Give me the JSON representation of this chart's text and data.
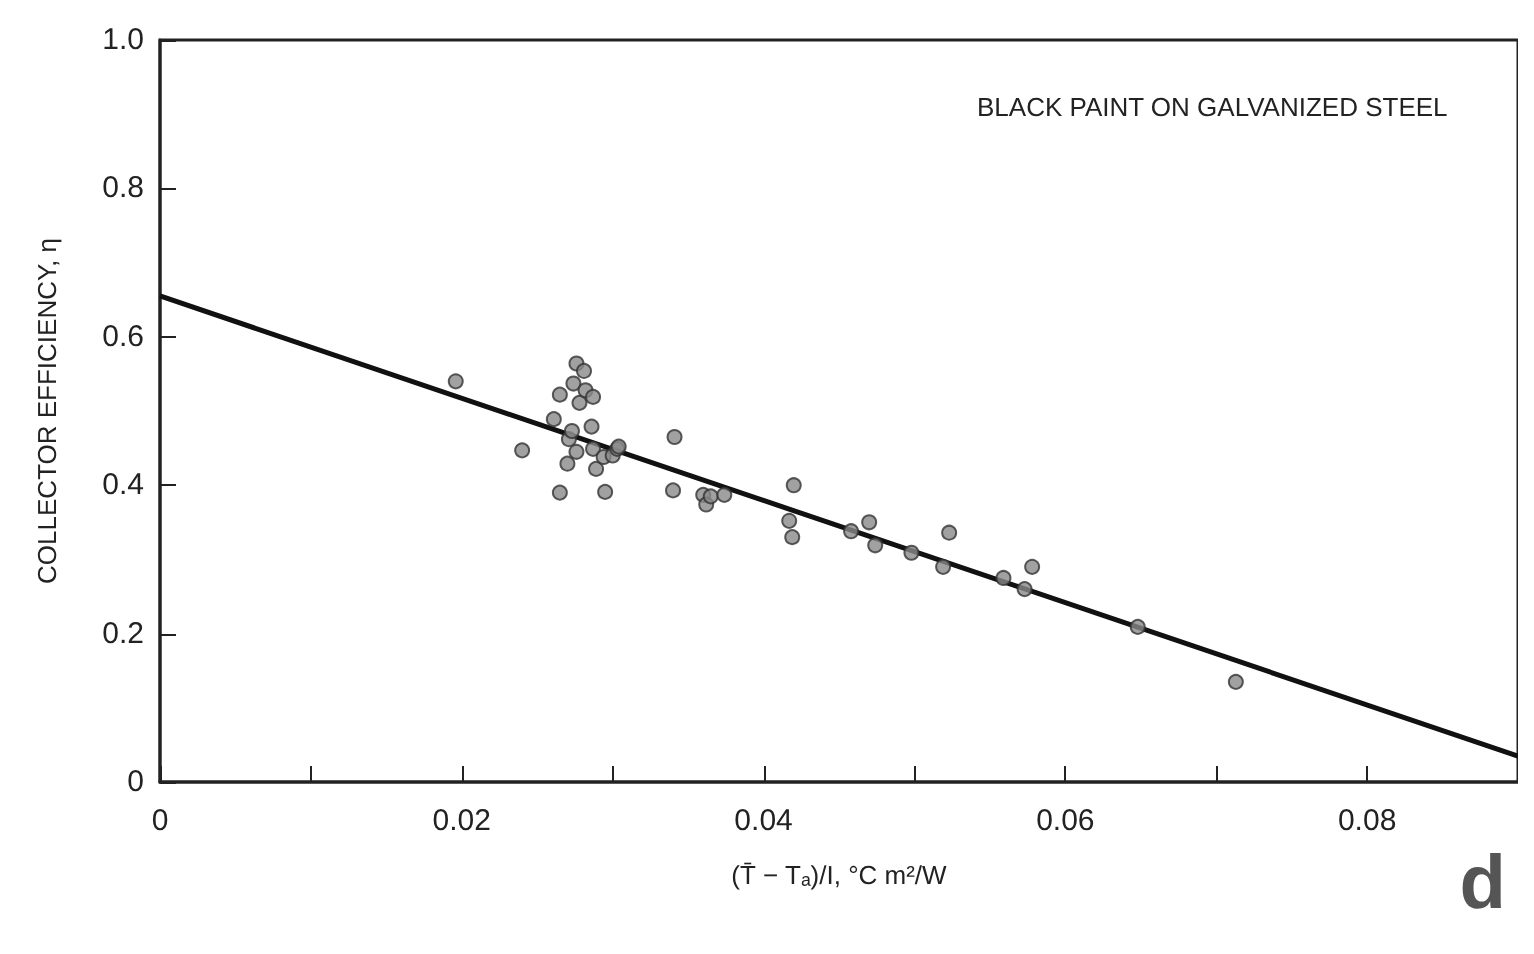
{
  "chart_data": {
    "type": "scatter",
    "title": "BLACK PAINT ON GALVANIZED STEEL",
    "xlabel": "(T̄ − Tₐ)/I, °C m²/W",
    "ylabel": "COLLECTOR EFFICIENCY, η",
    "annotations": [
      "d"
    ],
    "xlim": [
      0,
      0.09
    ],
    "ylim": [
      0,
      1
    ],
    "xticks": [
      0,
      {
        "value": 0.01,
        "label": null
      },
      0.02,
      {
        "value": 0.03,
        "label": null
      },
      0.04,
      {
        "value": 0.05,
        "label": null
      },
      0.06,
      {
        "value": 0.07,
        "label": null
      },
      0.08
    ],
    "yticks": [
      0,
      0.2,
      0.4,
      0.6,
      0.8,
      {
        "value": 1,
        "label": "1.0"
      }
    ],
    "series": [
      {
        "marker": "circle",
        "color": "#8a8a8a",
        "x": [
          0.0196,
          0.024,
          0.0261,
          0.0265,
          0.0265,
          0.027,
          0.0271,
          0.0273,
          0.0274,
          0.0276,
          0.0276,
          0.0278,
          0.0281,
          0.0282,
          0.0287,
          0.0286,
          0.0287,
          0.0289,
          0.0294,
          0.0295,
          0.03,
          0.0303,
          0.0304,
          0.034,
          0.0341,
          0.036,
          0.0362,
          0.0365,
          0.0374,
          0.0417,
          0.0419,
          0.042,
          0.0458,
          0.047,
          0.0474,
          0.0498,
          0.0519,
          0.0523,
          0.0559,
          0.0573,
          0.0578,
          0.0648,
          0.0713
        ],
        "values": [
          0.54,
          0.447,
          0.489,
          0.522,
          0.39,
          0.429,
          0.462,
          0.473,
          0.537,
          0.564,
          0.445,
          0.511,
          0.554,
          0.528,
          0.519,
          0.479,
          0.449,
          0.422,
          0.438,
          0.391,
          0.44,
          0.449,
          0.452,
          0.393,
          0.465,
          0.387,
          0.374,
          0.385,
          0.387,
          0.352,
          0.33,
          0.4,
          0.338,
          0.35,
          0.319,
          0.309,
          0.29,
          0.336,
          0.275,
          0.26,
          0.29,
          0.209,
          0.135
        ]
      },
      {
        "type": "line",
        "marker": "none",
        "color": "#111111",
        "x": [
          0,
          0.09
        ],
        "values": [
          0.655,
          0.035
        ]
      }
    ]
  }
}
